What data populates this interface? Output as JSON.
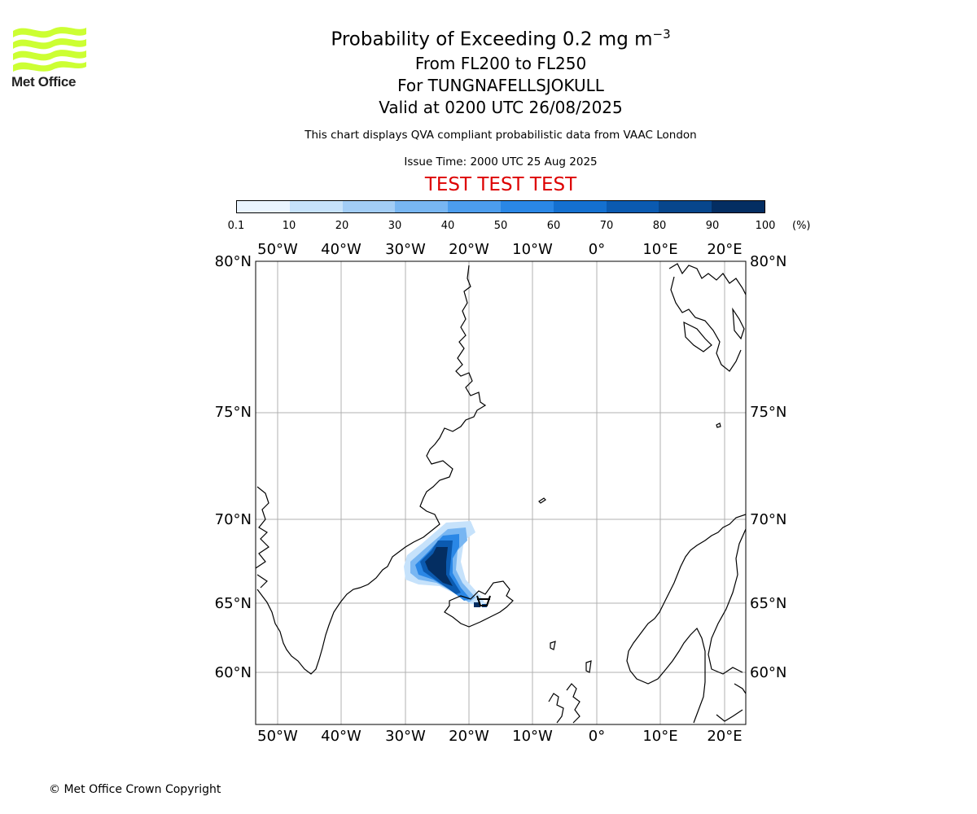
{
  "logo": {
    "text": "Met Office",
    "color": "#ccff33"
  },
  "title": {
    "line1_main": "Probability of Exceeding 0.2 mg m",
    "line1_sup": "−3",
    "line2": "From FL200 to FL250",
    "line3": "For TUNGNAFELLSJOKULL",
    "line4": "Valid at 0200 UTC 26/08/2025"
  },
  "subtitle": "This chart displays QVA compliant probabilistic data from VAAC London",
  "issue_time": "Issue Time: 2000 UTC 25 Aug 2025",
  "test_banner": "TEST TEST TEST",
  "colorbar": {
    "ticks": [
      "0.1",
      "10",
      "20",
      "30",
      "40",
      "50",
      "60",
      "70",
      "80",
      "90",
      "100"
    ],
    "unit": "(%)",
    "colors": [
      "#eaf4fe",
      "#c6e2fb",
      "#a2cdf6",
      "#78b6f2",
      "#4c9ded",
      "#2a87e6",
      "#1470d0",
      "#0b5ab0",
      "#07468c",
      "#042e62"
    ]
  },
  "map": {
    "lon_labels": [
      "50°W",
      "40°W",
      "30°W",
      "20°W",
      "10°W",
      "0°",
      "10°E",
      "20°E"
    ],
    "lat_labels": [
      "80°N",
      "75°N",
      "70°N",
      "65°N",
      "60°N"
    ],
    "volcano": "TUNGNAFELLSJOKULL"
  },
  "copyright": "© Met Office Crown Copyright"
}
